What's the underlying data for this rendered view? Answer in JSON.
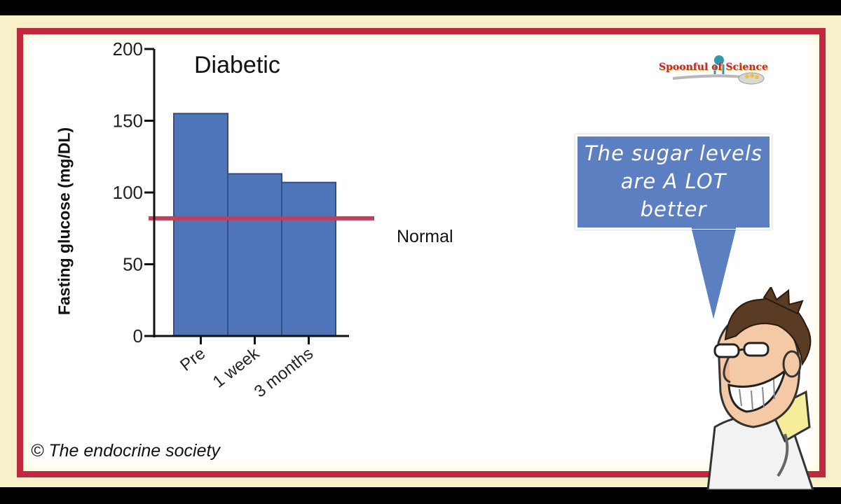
{
  "chart_data": {
    "type": "bar",
    "title": "Diabetic",
    "ylabel": "Fasting  glucose  (mg/DL)",
    "xlabel": "",
    "categories": [
      "Pre",
      "1 week",
      "3 months"
    ],
    "values": [
      155,
      113,
      107
    ],
    "ylim": [
      0,
      200
    ],
    "yticks": [
      0,
      50,
      100,
      150,
      200
    ],
    "bar_color": "#4f74b8",
    "bar_edge_color": "#2f4f86",
    "reference_line": {
      "value": 82,
      "label": "Normal",
      "color": "#c0405a"
    },
    "grid": false,
    "legend": "none"
  },
  "bubble": {
    "lines": [
      "The  sugar  levels",
      "are  A  LOT",
      "better"
    ],
    "color": "#5b7fc0"
  },
  "copyright": "© The endocrine society",
  "brand": {
    "name": "Spoonful of Science"
  },
  "colors": {
    "frame": "#c0283f",
    "background": "#f6f1c8"
  }
}
